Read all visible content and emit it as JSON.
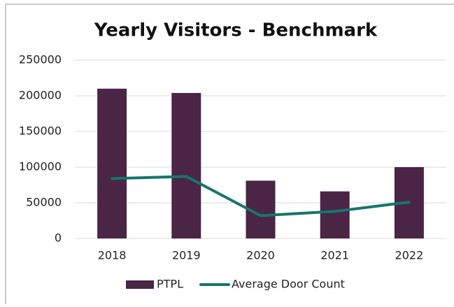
{
  "chart_data": {
    "type": "bar",
    "title": "Yearly Visitors - Benchmark",
    "categories": [
      "2018",
      "2019",
      "2020",
      "2021",
      "2022"
    ],
    "series": [
      {
        "name": "PTPL",
        "color": "#4a2545",
        "type": "bar",
        "values": [
          210000,
          204000,
          81000,
          66000,
          100000
        ]
      },
      {
        "name": "Average Door Count",
        "color": "#16756b",
        "type": "line",
        "values": [
          84000,
          87000,
          32000,
          38000,
          51000
        ]
      }
    ],
    "ylim": [
      0,
      250000
    ],
    "yticks": [
      0,
      50000,
      100000,
      150000,
      200000,
      250000
    ],
    "grid": true,
    "legend": "bottom"
  }
}
